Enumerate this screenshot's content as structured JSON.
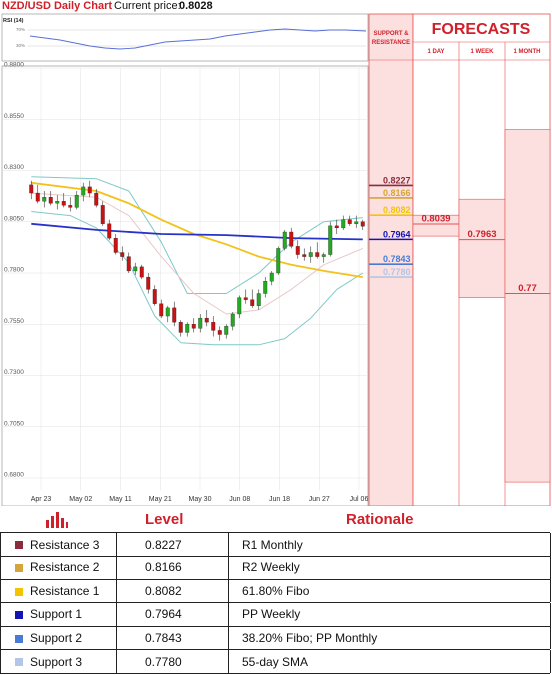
{
  "header": {
    "title": "NZD/USD Daily Chart",
    "current_label": "Current price:",
    "current_value": "0.8028"
  },
  "rsi": {
    "label": "RSI (14)",
    "ticks": [
      "70%",
      "30%"
    ]
  },
  "panels": {
    "sr_title": [
      "SUPPORT &",
      "RESISTANCE"
    ],
    "forecasts_title": "FORECASTS",
    "horizons": [
      "1 DAY",
      "1 WEEK",
      "1 MONTH"
    ]
  },
  "forecasts": [
    {
      "horizon": "1 DAY",
      "value": "0.8039"
    },
    {
      "horizon": "1 WEEK",
      "value": "0.7963"
    },
    {
      "horizon": "1 MONTH",
      "value": "0.77"
    }
  ],
  "chart_data": {
    "type": "candlestick",
    "title": "NZD/USD Daily Chart",
    "ylim": [
      0.68,
      0.88
    ],
    "y_ticks": [
      "0.8800",
      "0.8550",
      "0.8300",
      "0.8050",
      "0.7800",
      "0.7550",
      "0.7300",
      "0.7050",
      "0.6800"
    ],
    "x_ticks": [
      "Apr 23",
      "May 02",
      "May 11",
      "May 21",
      "May 30",
      "Jun 08",
      "Jun 18",
      "Jun 27",
      "Jul 06"
    ],
    "candles": [
      [
        0.823,
        0.825,
        0.816,
        0.819
      ],
      [
        0.819,
        0.823,
        0.814,
        0.815
      ],
      [
        0.815,
        0.82,
        0.812,
        0.817
      ],
      [
        0.817,
        0.82,
        0.813,
        0.814
      ],
      [
        0.814,
        0.818,
        0.811,
        0.815
      ],
      [
        0.815,
        0.819,
        0.812,
        0.813
      ],
      [
        0.813,
        0.817,
        0.81,
        0.812
      ],
      [
        0.812,
        0.82,
        0.811,
        0.818
      ],
      [
        0.818,
        0.824,
        0.815,
        0.822
      ],
      [
        0.822,
        0.825,
        0.817,
        0.819
      ],
      [
        0.819,
        0.821,
        0.812,
        0.813
      ],
      [
        0.813,
        0.815,
        0.803,
        0.804
      ],
      [
        0.804,
        0.806,
        0.796,
        0.797
      ],
      [
        0.797,
        0.799,
        0.789,
        0.79
      ],
      [
        0.79,
        0.793,
        0.786,
        0.788
      ],
      [
        0.788,
        0.79,
        0.78,
        0.781
      ],
      [
        0.781,
        0.785,
        0.779,
        0.783
      ],
      [
        0.783,
        0.784,
        0.777,
        0.778
      ],
      [
        0.778,
        0.78,
        0.77,
        0.772
      ],
      [
        0.772,
        0.774,
        0.764,
        0.765
      ],
      [
        0.765,
        0.767,
        0.758,
        0.759
      ],
      [
        0.759,
        0.764,
        0.756,
        0.763
      ],
      [
        0.763,
        0.766,
        0.754,
        0.756
      ],
      [
        0.756,
        0.757,
        0.749,
        0.751
      ],
      [
        0.751,
        0.756,
        0.749,
        0.755
      ],
      [
        0.755,
        0.758,
        0.751,
        0.753
      ],
      [
        0.753,
        0.76,
        0.751,
        0.758
      ],
      [
        0.758,
        0.762,
        0.754,
        0.756
      ],
      [
        0.756,
        0.759,
        0.749,
        0.752
      ],
      [
        0.752,
        0.754,
        0.747,
        0.75
      ],
      [
        0.75,
        0.755,
        0.748,
        0.754
      ],
      [
        0.754,
        0.761,
        0.752,
        0.76
      ],
      [
        0.76,
        0.769,
        0.758,
        0.768
      ],
      [
        0.768,
        0.772,
        0.765,
        0.767
      ],
      [
        0.767,
        0.772,
        0.763,
        0.764
      ],
      [
        0.764,
        0.772,
        0.762,
        0.77
      ],
      [
        0.77,
        0.778,
        0.768,
        0.776
      ],
      [
        0.776,
        0.781,
        0.774,
        0.78
      ],
      [
        0.78,
        0.793,
        0.779,
        0.792
      ],
      [
        0.792,
        0.801,
        0.791,
        0.8
      ],
      [
        0.8,
        0.802,
        0.792,
        0.793
      ],
      [
        0.793,
        0.796,
        0.787,
        0.789
      ],
      [
        0.789,
        0.792,
        0.786,
        0.788
      ],
      [
        0.788,
        0.793,
        0.785,
        0.79
      ],
      [
        0.79,
        0.795,
        0.787,
        0.788
      ],
      [
        0.788,
        0.79,
        0.785,
        0.789
      ],
      [
        0.789,
        0.805,
        0.788,
        0.803
      ],
      [
        0.803,
        0.806,
        0.799,
        0.802
      ],
      [
        0.802,
        0.808,
        0.801,
        0.806
      ],
      [
        0.806,
        0.808,
        0.803,
        0.804
      ],
      [
        0.804,
        0.808,
        0.802,
        0.805
      ],
      [
        0.805,
        0.806,
        0.801,
        0.8028
      ]
    ],
    "lines": [
      {
        "name": "upper-band",
        "color": "#7fc8c8",
        "points": [
          [
            0,
            0.827
          ],
          [
            10,
            0.826
          ],
          [
            15,
            0.82
          ],
          [
            20,
            0.795
          ],
          [
            24,
            0.77
          ],
          [
            30,
            0.77
          ],
          [
            35,
            0.78
          ],
          [
            40,
            0.795
          ],
          [
            45,
            0.805
          ],
          [
            51,
            0.807
          ]
        ]
      },
      {
        "name": "lower-band",
        "color": "#7fc8c8",
        "points": [
          [
            0,
            0.81
          ],
          [
            6,
            0.808
          ],
          [
            10,
            0.802
          ],
          [
            15,
            0.785
          ],
          [
            19,
            0.759
          ],
          [
            23,
            0.746
          ],
          [
            28,
            0.745
          ],
          [
            35,
            0.745
          ],
          [
            39,
            0.748
          ],
          [
            43,
            0.758
          ],
          [
            47,
            0.772
          ],
          [
            51,
            0.78
          ]
        ]
      },
      {
        "name": "middle-band",
        "color": "#e8c8c8",
        "points": [
          [
            0,
            0.819
          ],
          [
            10,
            0.817
          ],
          [
            15,
            0.808
          ],
          [
            20,
            0.788
          ],
          [
            25,
            0.77
          ],
          [
            30,
            0.76
          ],
          [
            35,
            0.762
          ],
          [
            40,
            0.772
          ],
          [
            45,
            0.784
          ],
          [
            51,
            0.792
          ]
        ]
      },
      {
        "name": "sma-55",
        "color": "#f2c21b",
        "points": [
          [
            0,
            0.824
          ],
          [
            10,
            0.82
          ],
          [
            15,
            0.814
          ],
          [
            20,
            0.806
          ],
          [
            25,
            0.799
          ],
          [
            30,
            0.794
          ],
          [
            35,
            0.788
          ],
          [
            40,
            0.784
          ],
          [
            45,
            0.781
          ],
          [
            51,
            0.778
          ]
        ]
      },
      {
        "name": "sma-200",
        "color": "#2832c8",
        "points": [
          [
            0,
            0.804
          ],
          [
            10,
            0.801
          ],
          [
            20,
            0.799
          ],
          [
            30,
            0.7985
          ],
          [
            40,
            0.797
          ],
          [
            51,
            0.7964
          ]
        ]
      }
    ],
    "levels": [
      {
        "name": "Resistance 3",
        "value": "0.8227",
        "color": "#8b2b3e"
      },
      {
        "name": "Resistance 2",
        "value": "0.8166",
        "color": "#d4a53a"
      },
      {
        "name": "Resistance 1",
        "value": "0.8082",
        "color": "#f5c400"
      },
      {
        "name": "Support 1",
        "value": "0.7964",
        "color": "#1414b4"
      },
      {
        "name": "Support 2",
        "value": "0.7843",
        "color": "#4a7bd4"
      },
      {
        "name": "Support 3",
        "value": "0.7780",
        "color": "#b4c6e6"
      }
    ],
    "bull_color": "#22aa22",
    "bear_color": "#cc1111"
  },
  "table": {
    "columns": [
      "Level",
      "Rationale"
    ],
    "rows": [
      {
        "name": "Resistance 3",
        "level": "0.8227",
        "rationale": "R1 Monthly",
        "color": "#8b2b3e"
      },
      {
        "name": "Resistance 2",
        "level": "0.8166",
        "rationale": "R2 Weekly",
        "color": "#d4a53a"
      },
      {
        "name": "Resistance 1",
        "level": "0.8082",
        "rationale": "61.80% Fibo",
        "color": "#f5c400"
      },
      {
        "name": "Support 1",
        "level": "0.7964",
        "rationale": "PP Weekly",
        "color": "#1414b4"
      },
      {
        "name": "Support 2",
        "level": "0.7843",
        "rationale": "38.20% Fibo; PP Monthly",
        "color": "#4a7bd4"
      },
      {
        "name": "Support 3",
        "level": "0.7780",
        "rationale": "55-day SMA",
        "color": "#b4c6e6"
      }
    ]
  },
  "colors": {
    "accent": "#d0202a",
    "panel_bg": "#fce0e0",
    "panel_border": "#e85050"
  }
}
